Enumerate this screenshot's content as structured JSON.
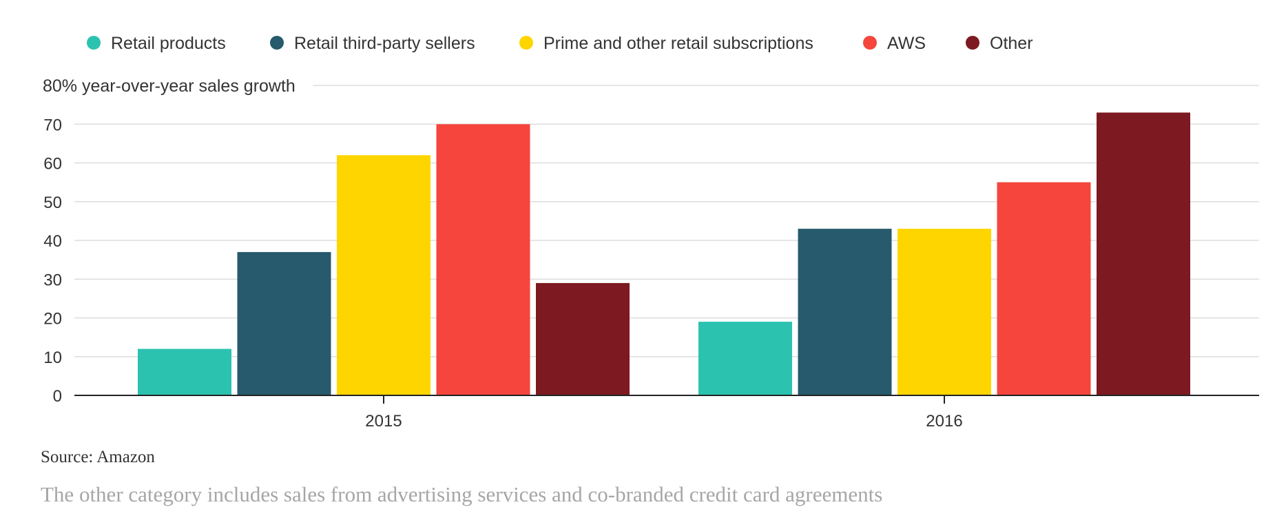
{
  "chart_data": {
    "type": "bar",
    "categories": [
      "2015",
      "2016"
    ],
    "series": [
      {
        "name": "Retail products",
        "color": "#2bc2b0",
        "values": [
          12,
          19
        ]
      },
      {
        "name": "Retail third-party sellers",
        "color": "#265a6c",
        "values": [
          37,
          43
        ]
      },
      {
        "name": "Prime and other retail subscriptions",
        "color": "#ffd500",
        "values": [
          62,
          43
        ]
      },
      {
        "name": "AWS",
        "color": "#f5453c",
        "values": [
          70,
          55
        ]
      },
      {
        "name": "Other",
        "color": "#7d1921",
        "values": [
          29,
          73
        ]
      }
    ],
    "ylabel": "80% year-over-year sales growth",
    "ylim": [
      0,
      80
    ],
    "yticks": [
      0,
      10,
      20,
      30,
      40,
      50,
      60,
      70
    ],
    "grid": true,
    "legend": "top-left"
  },
  "footer": {
    "source": "Source: Amazon",
    "note": "The other category includes sales from advertising services and co-branded credit card agreements"
  }
}
